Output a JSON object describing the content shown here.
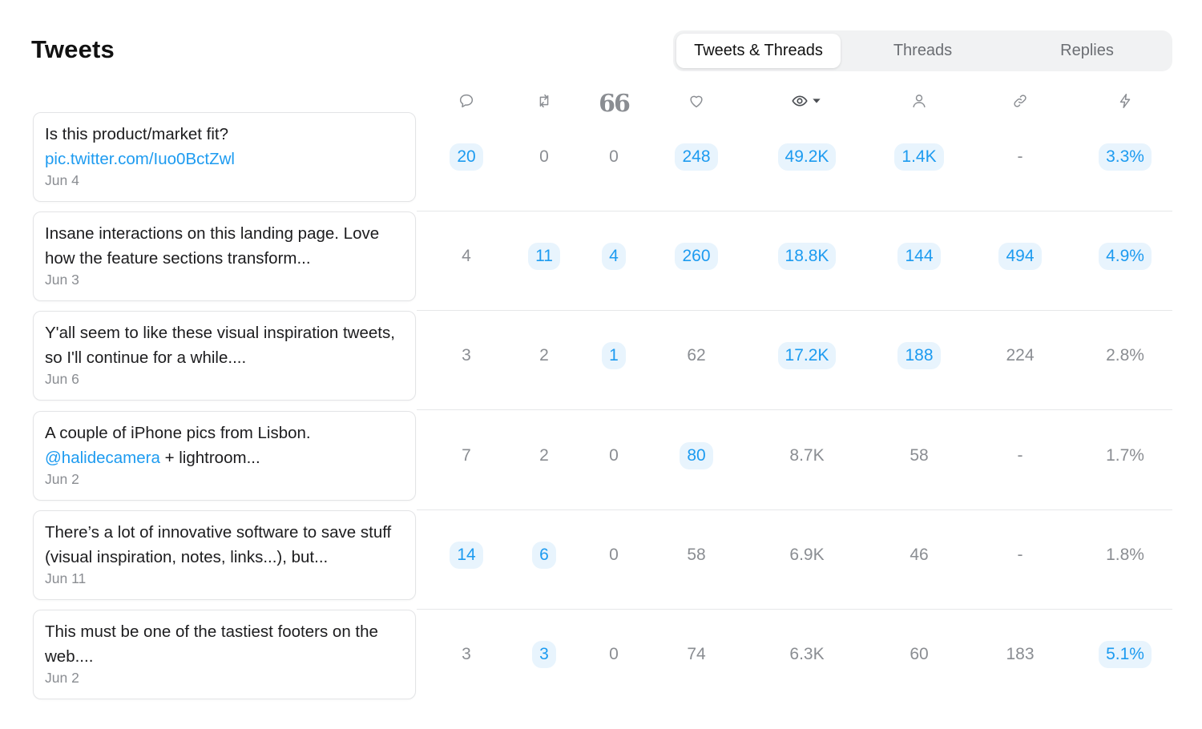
{
  "title": "Tweets",
  "tabs": [
    {
      "label": "Tweets & Threads",
      "active": true
    },
    {
      "label": "Threads",
      "active": false
    },
    {
      "label": "Replies",
      "active": false
    }
  ],
  "columns": [
    {
      "icon": "reply-icon"
    },
    {
      "icon": "retweet-icon"
    },
    {
      "icon": "quote-icon",
      "glyph": "66"
    },
    {
      "icon": "like-icon"
    },
    {
      "icon": "views-icon",
      "sort": "caret-down-icon"
    },
    {
      "icon": "profile-icon"
    },
    {
      "icon": "link-icon"
    },
    {
      "icon": "engagement-icon"
    }
  ],
  "colors": {
    "accent": "#1d9bf0",
    "highlight_bg": "#e8f4fd",
    "muted": "#8a8d92"
  },
  "rows": [
    {
      "text": "Is this product/market fit?",
      "link": "pic.twitter.com/Iuo0BctZwl",
      "date": "Jun 4",
      "values": [
        "20",
        "0",
        "0",
        "248",
        "49.2K",
        "1.4K",
        "-",
        "3.3%"
      ],
      "highlight": [
        true,
        false,
        false,
        true,
        true,
        true,
        false,
        true
      ]
    },
    {
      "text": "Insane interactions on this landing page. Love how the feature sections transform...",
      "date": "Jun 3",
      "values": [
        "4",
        "11",
        "4",
        "260",
        "18.8K",
        "144",
        "494",
        "4.9%"
      ],
      "highlight": [
        false,
        true,
        true,
        true,
        true,
        true,
        true,
        true
      ]
    },
    {
      "text": "Y'all seem to like these visual inspiration tweets, so I'll continue for a while....",
      "date": "Jun 6",
      "values": [
        "3",
        "2",
        "1",
        "62",
        "17.2K",
        "188",
        "224",
        "2.8%"
      ],
      "highlight": [
        false,
        false,
        true,
        false,
        true,
        true,
        false,
        false
      ]
    },
    {
      "text": "A couple of iPhone pics from Lisbon.",
      "mention": "@halidecamera",
      "after_mention": " + lightroom...",
      "date": "Jun 2",
      "values": [
        "7",
        "2",
        "0",
        "80",
        "8.7K",
        "58",
        "-",
        "1.7%"
      ],
      "highlight": [
        false,
        false,
        false,
        true,
        false,
        false,
        false,
        false
      ]
    },
    {
      "text": "There’s a lot of innovative software to save stuff (visual inspiration, notes, links...), but...",
      "date": "Jun 11",
      "values": [
        "14",
        "6",
        "0",
        "58",
        "6.9K",
        "46",
        "-",
        "1.8%"
      ],
      "highlight": [
        true,
        true,
        false,
        false,
        false,
        false,
        false,
        false
      ]
    },
    {
      "text": "This must be one of the tastiest footers on the web....",
      "date": "Jun 2",
      "values": [
        "3",
        "3",
        "0",
        "74",
        "6.3K",
        "60",
        "183",
        "5.1%"
      ],
      "highlight": [
        false,
        true,
        false,
        false,
        false,
        false,
        false,
        true
      ]
    }
  ]
}
